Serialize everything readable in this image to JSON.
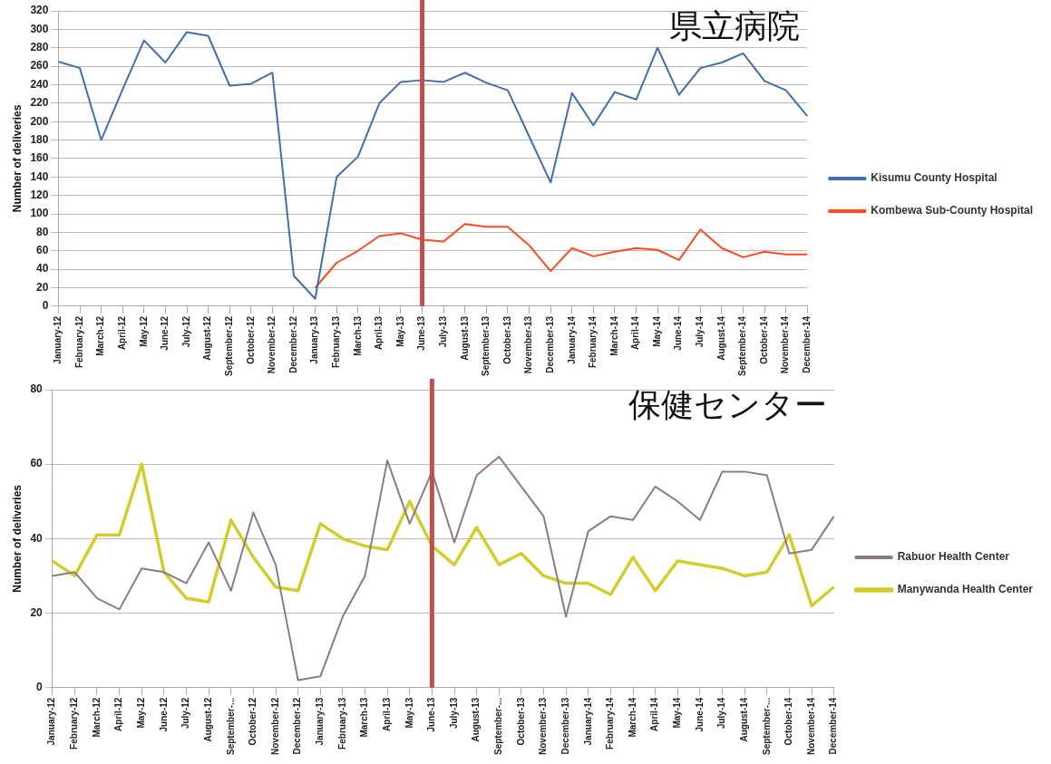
{
  "chart_data": [
    {
      "type": "line",
      "annotations": [
        "県立病院"
      ],
      "ylabel": "Number of deliveries",
      "categories": [
        "January-12",
        "February-12",
        "March-12",
        "April-12",
        "May-12",
        "June-12",
        "July-12",
        "August-12",
        "September-12",
        "October-12",
        "November-12",
        "December-12",
        "January-13",
        "February-13",
        "March-13",
        "April-13",
        "May-13",
        "June-13",
        "July-13",
        "August-13",
        "September-13",
        "October-13",
        "November-13",
        "December-13",
        "January-14",
        "February-14",
        "March-14",
        "April-14",
        "May-14",
        "June-14",
        "July-14",
        "August-14",
        "September-14",
        "October-14",
        "November-14",
        "December-14"
      ],
      "series": [
        {
          "name": "Kisumu County Hospital",
          "color": "#3d6fb6",
          "values": [
            265,
            258,
            180,
            235,
            288,
            264,
            297,
            293,
            239,
            241,
            253,
            33,
            8,
            140,
            162,
            220,
            243,
            245,
            243,
            253,
            242,
            234,
            184,
            134,
            231,
            196,
            232,
            224,
            280,
            229,
            258,
            264,
            274,
            244,
            234,
            206
          ]
        },
        {
          "name": "Kombewa Sub-County Hospital",
          "color": "#ff4a1a",
          "values": [
            null,
            null,
            null,
            null,
            null,
            null,
            null,
            null,
            null,
            null,
            null,
            null,
            20,
            47,
            60,
            76,
            79,
            72,
            70,
            89,
            86,
            86,
            66,
            38,
            63,
            54,
            59,
            63,
            61,
            50,
            83,
            63,
            53,
            59,
            56,
            56
          ]
        }
      ],
      "ylim": [
        0,
        320
      ],
      "yticks": [
        0,
        20,
        40,
        60,
        80,
        100,
        120,
        140,
        160,
        180,
        200,
        220,
        240,
        260,
        280,
        300,
        320
      ],
      "grid": "y",
      "legend": "right",
      "marker": "none",
      "line_style": "solid",
      "ref_lines": [
        {
          "axis": "x",
          "value": "June-13",
          "color": "#c0504d"
        }
      ]
    },
    {
      "type": "line",
      "annotations": [
        "保健センター"
      ],
      "ylabel": "Number of deliveries",
      "categories": [
        "January-12",
        "February-12",
        "March-12",
        "April-12",
        "May-12",
        "June-12",
        "July-12",
        "August-12",
        "September-...",
        "October-12",
        "November-12",
        "December-12",
        "January-13",
        "February-13",
        "March-13",
        "April-13",
        "May-13",
        "June-13",
        "July-13",
        "August-13",
        "September-...",
        "October-13",
        "November-13",
        "December-13",
        "January-14",
        "February-14",
        "March-14",
        "April-14",
        "May-14",
        "June-14",
        "July-14",
        "August-14",
        "September-...",
        "October-14",
        "November-14",
        "December-14"
      ],
      "series": [
        {
          "name": "Rabuor Health Center",
          "color": "#8c7b80",
          "values": [
            30,
            31,
            24,
            21,
            32,
            31,
            28,
            39,
            26,
            47,
            33,
            2,
            3,
            19,
            30,
            61,
            44,
            58,
            39,
            57,
            62,
            54,
            46,
            19,
            42,
            46,
            45,
            54,
            50,
            45,
            58,
            58,
            57,
            36,
            37,
            46
          ]
        },
        {
          "name": "Manywanda Health Center",
          "color": "#d4cc2a",
          "values": [
            34,
            30,
            41,
            41,
            60,
            31,
            24,
            23,
            45,
            35,
            27,
            26,
            44,
            40,
            38,
            37,
            50,
            38,
            33,
            43,
            33,
            36,
            30,
            28,
            28,
            25,
            35,
            26,
            34,
            33,
            32,
            30,
            31,
            41,
            22,
            27
          ]
        }
      ],
      "ylim": [
        0,
        80
      ],
      "yticks": [
        0,
        20,
        40,
        60,
        80
      ],
      "grid": "y",
      "legend": "right",
      "marker": "none",
      "line_style": "solid",
      "ref_lines": [
        {
          "axis": "x",
          "value": "June-13",
          "color": "#c0504d"
        }
      ]
    }
  ]
}
